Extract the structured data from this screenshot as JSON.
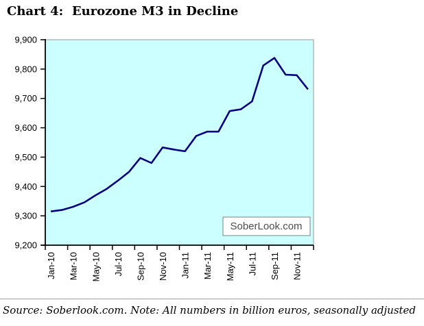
{
  "title": "Chart 4:  Eurozone M3 in Decline",
  "source_note": "Source: Soberlook.com. Note: All numbers in billion euros, seasonally adjusted",
  "watermark": "SoberLook.com",
  "colors": {
    "plot_bg": "#ccffff",
    "line": "#000080",
    "axis": "#000000",
    "plot_border": "#969696",
    "watermark_bg": "#ffffff",
    "watermark_border": "#808080",
    "watermark_text": "#4d4d4d"
  },
  "chart_data": {
    "type": "line",
    "title": "Chart 4:  Eurozone M3 in Decline",
    "x": [
      "Jan-10",
      "Feb-10",
      "Mar-10",
      "Apr-10",
      "May-10",
      "Jun-10",
      "Jul-10",
      "Aug-10",
      "Sep-10",
      "Oct-10",
      "Nov-10",
      "Dec-10",
      "Jan-11",
      "Feb-11",
      "Mar-11",
      "Apr-11",
      "May-11",
      "Jun-11",
      "Jul-11",
      "Aug-11",
      "Sep-11",
      "Oct-11",
      "Nov-11",
      "Dec-11"
    ],
    "values": [
      9315,
      9320,
      9331,
      9346,
      9370,
      9392,
      9420,
      9450,
      9497,
      9480,
      9533,
      9526,
      9520,
      9572,
      9587,
      9587,
      9657,
      9663,
      9690,
      9812,
      9838,
      9781,
      9779,
      9731
    ],
    "x_tick_labels": [
      "Jan-10",
      "Mar-10",
      "May-10",
      "Jul-10",
      "Sep-10",
      "Nov-10",
      "Jan-11",
      "Mar-11",
      "May-11",
      "Jul-11",
      "Sep-11",
      "Nov-11"
    ],
    "label_every": 2,
    "y_tick_labels": [
      "9,200",
      "9,300",
      "9,400",
      "9,500",
      "9,600",
      "9,700",
      "9,800",
      "9,900"
    ],
    "ylim": [
      9200,
      9900
    ],
    "y_tick_step": 100,
    "xlabel": "",
    "ylabel": "",
    "units": "billion euros, seasonally adjusted",
    "grid": false,
    "legend": "none"
  }
}
